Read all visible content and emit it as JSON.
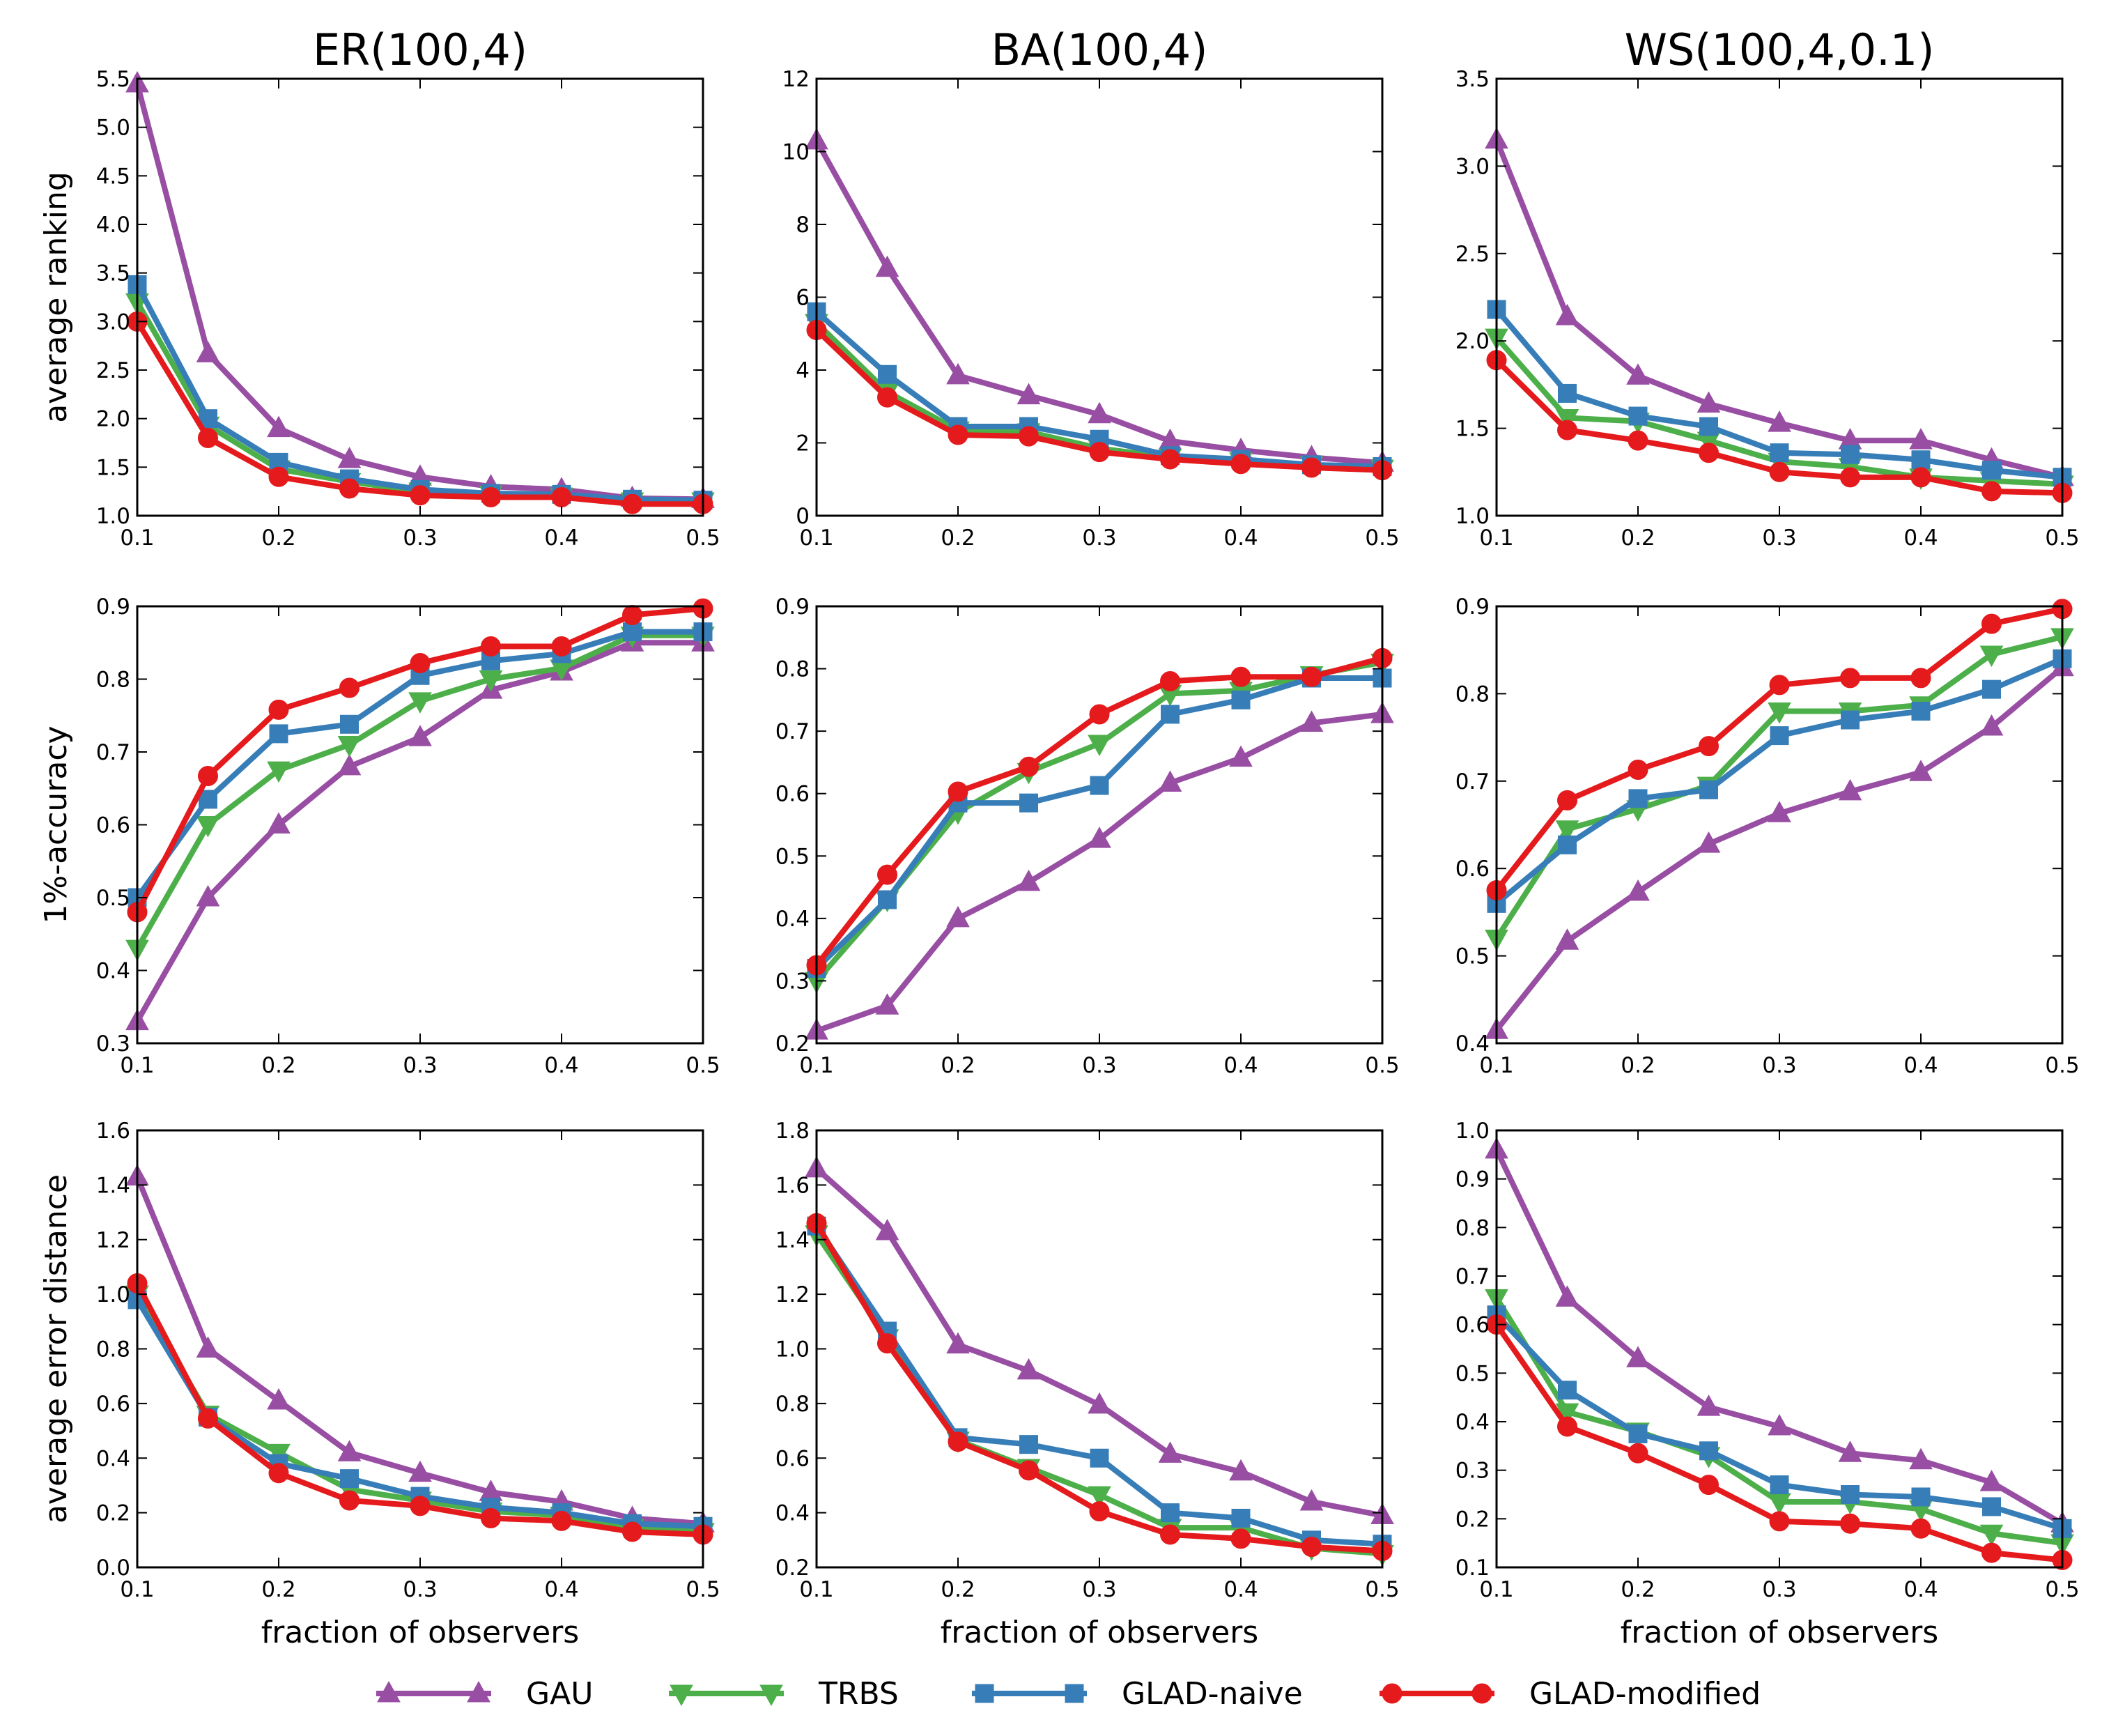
{
  "colors": {
    "GAU": "#984ea3",
    "TRBS": "#4daf4a",
    "GLAD-naive": "#377eb8",
    "GLAD-modified": "#e41a1c"
  },
  "legend": [
    {
      "name": "GAU",
      "marker": "triangle-up",
      "color": "#984ea3"
    },
    {
      "name": "TRBS",
      "marker": "triangle-down",
      "color": "#4daf4a"
    },
    {
      "name": "GLAD-naive",
      "marker": "square",
      "color": "#377eb8"
    },
    {
      "name": "GLAD-modified",
      "marker": "circle",
      "color": "#e41a1c"
    }
  ],
  "chart_data": [
    {
      "type": "line",
      "row": 0,
      "col": 0,
      "title": "ER(100,4)",
      "xlabel": "",
      "ylabel": "average ranking",
      "x": [
        0.1,
        0.15,
        0.2,
        0.25,
        0.3,
        0.35,
        0.4,
        0.45,
        0.5
      ],
      "xlim": [
        0.1,
        0.5
      ],
      "xticks": [
        0.1,
        0.2,
        0.3,
        0.4,
        0.5
      ],
      "ylim": [
        1.0,
        5.5
      ],
      "yticks": [
        1.0,
        1.5,
        2.0,
        2.5,
        3.0,
        3.5,
        4.0,
        4.5,
        5.0,
        5.5
      ],
      "ydecimals": 1,
      "series": [
        {
          "name": "GAU",
          "values": [
            5.45,
            2.67,
            1.9,
            1.58,
            1.4,
            1.3,
            1.27,
            1.18,
            1.17
          ]
        },
        {
          "name": "TRBS",
          "values": [
            3.2,
            1.93,
            1.48,
            1.35,
            1.25,
            1.22,
            1.2,
            1.15,
            1.15
          ]
        },
        {
          "name": "GLAD-naive",
          "values": [
            3.38,
            2.0,
            1.55,
            1.38,
            1.27,
            1.23,
            1.22,
            1.17,
            1.16
          ]
        },
        {
          "name": "GLAD-modified",
          "values": [
            3.0,
            1.8,
            1.4,
            1.28,
            1.21,
            1.19,
            1.19,
            1.12,
            1.12
          ]
        }
      ]
    },
    {
      "type": "line",
      "row": 0,
      "col": 1,
      "title": "BA(100,4)",
      "xlabel": "",
      "ylabel": "",
      "x": [
        0.1,
        0.15,
        0.2,
        0.25,
        0.3,
        0.35,
        0.4,
        0.45,
        0.5
      ],
      "xlim": [
        0.1,
        0.5
      ],
      "xticks": [
        0.1,
        0.2,
        0.3,
        0.4,
        0.5
      ],
      "ylim": [
        0,
        12
      ],
      "yticks": [
        0,
        2,
        4,
        6,
        8,
        10,
        12
      ],
      "ydecimals": 0,
      "series": [
        {
          "name": "GAU",
          "values": [
            10.3,
            6.8,
            3.85,
            3.3,
            2.78,
            2.05,
            1.8,
            1.6,
            1.45
          ]
        },
        {
          "name": "TRBS",
          "values": [
            5.3,
            3.4,
            2.35,
            2.3,
            1.85,
            1.6,
            1.5,
            1.4,
            1.3
          ]
        },
        {
          "name": "GLAD-naive",
          "values": [
            5.6,
            3.88,
            2.45,
            2.45,
            2.1,
            1.65,
            1.55,
            1.4,
            1.35
          ]
        },
        {
          "name": "GLAD-modified",
          "values": [
            5.1,
            3.25,
            2.22,
            2.18,
            1.75,
            1.55,
            1.42,
            1.32,
            1.25
          ]
        }
      ]
    },
    {
      "type": "line",
      "row": 0,
      "col": 2,
      "title": "WS(100,4,0.1)",
      "xlabel": "",
      "ylabel": "",
      "x": [
        0.1,
        0.15,
        0.2,
        0.25,
        0.3,
        0.35,
        0.4,
        0.45,
        0.5
      ],
      "xlim": [
        0.1,
        0.5
      ],
      "xticks": [
        0.1,
        0.2,
        0.3,
        0.4,
        0.5
      ],
      "ylim": [
        1.0,
        3.5
      ],
      "yticks": [
        1.0,
        1.5,
        2.0,
        2.5,
        3.0,
        3.5
      ],
      "ydecimals": 1,
      "series": [
        {
          "name": "GAU",
          "values": [
            3.15,
            2.14,
            1.8,
            1.64,
            1.53,
            1.43,
            1.43,
            1.32,
            1.22
          ]
        },
        {
          "name": "TRBS",
          "values": [
            2.02,
            1.56,
            1.54,
            1.43,
            1.31,
            1.28,
            1.22,
            1.2,
            1.18
          ]
        },
        {
          "name": "GLAD-naive",
          "values": [
            2.18,
            1.7,
            1.57,
            1.51,
            1.36,
            1.35,
            1.32,
            1.26,
            1.22
          ]
        },
        {
          "name": "GLAD-modified",
          "values": [
            1.89,
            1.49,
            1.43,
            1.36,
            1.25,
            1.22,
            1.22,
            1.14,
            1.13
          ]
        }
      ]
    },
    {
      "type": "line",
      "row": 1,
      "col": 0,
      "title": "",
      "xlabel": "",
      "ylabel": "1%-accuracy",
      "x": [
        0.1,
        0.15,
        0.2,
        0.25,
        0.3,
        0.35,
        0.4,
        0.45,
        0.5
      ],
      "xlim": [
        0.1,
        0.5
      ],
      "xticks": [
        0.1,
        0.2,
        0.3,
        0.4,
        0.5
      ],
      "ylim": [
        0.3,
        0.9
      ],
      "yticks": [
        0.3,
        0.4,
        0.5,
        0.6,
        0.7,
        0.8,
        0.9
      ],
      "ydecimals": 1,
      "series": [
        {
          "name": "GAU",
          "values": [
            0.33,
            0.5,
            0.6,
            0.68,
            0.72,
            0.785,
            0.81,
            0.85,
            0.85
          ]
        },
        {
          "name": "TRBS",
          "values": [
            0.43,
            0.6,
            0.675,
            0.71,
            0.77,
            0.8,
            0.815,
            0.86,
            0.86
          ]
        },
        {
          "name": "GLAD-naive",
          "values": [
            0.5,
            0.635,
            0.725,
            0.738,
            0.805,
            0.825,
            0.835,
            0.865,
            0.865
          ]
        },
        {
          "name": "GLAD-modified",
          "values": [
            0.48,
            0.667,
            0.758,
            0.788,
            0.822,
            0.845,
            0.845,
            0.888,
            0.897
          ]
        }
      ]
    },
    {
      "type": "line",
      "row": 1,
      "col": 1,
      "title": "",
      "xlabel": "",
      "ylabel": "",
      "x": [
        0.1,
        0.15,
        0.2,
        0.25,
        0.3,
        0.35,
        0.4,
        0.45,
        0.5
      ],
      "xlim": [
        0.1,
        0.5
      ],
      "xticks": [
        0.1,
        0.2,
        0.3,
        0.4,
        0.5
      ],
      "ylim": [
        0.2,
        0.9
      ],
      "yticks": [
        0.2,
        0.3,
        0.4,
        0.5,
        0.6,
        0.7,
        0.8,
        0.9
      ],
      "ydecimals": 1,
      "series": [
        {
          "name": "GAU",
          "values": [
            0.22,
            0.26,
            0.4,
            0.458,
            0.527,
            0.617,
            0.657,
            0.713,
            0.727
          ]
        },
        {
          "name": "TRBS",
          "values": [
            0.3,
            0.43,
            0.57,
            0.635,
            0.68,
            0.76,
            0.765,
            0.79,
            0.81
          ]
        },
        {
          "name": "GLAD-naive",
          "values": [
            0.32,
            0.43,
            0.585,
            0.585,
            0.613,
            0.727,
            0.75,
            0.785,
            0.785
          ]
        },
        {
          "name": "GLAD-modified",
          "values": [
            0.325,
            0.47,
            0.603,
            0.643,
            0.727,
            0.78,
            0.787,
            0.787,
            0.817
          ]
        }
      ]
    },
    {
      "type": "line",
      "row": 1,
      "col": 2,
      "title": "",
      "xlabel": "",
      "ylabel": "",
      "x": [
        0.1,
        0.15,
        0.2,
        0.25,
        0.3,
        0.35,
        0.4,
        0.45,
        0.5
      ],
      "xlim": [
        0.1,
        0.5
      ],
      "xticks": [
        0.1,
        0.2,
        0.3,
        0.4,
        0.5
      ],
      "ylim": [
        0.4,
        0.9
      ],
      "yticks": [
        0.4,
        0.5,
        0.6,
        0.7,
        0.8,
        0.9
      ],
      "ydecimals": 1,
      "series": [
        {
          "name": "GAU",
          "values": [
            0.415,
            0.517,
            0.573,
            0.628,
            0.663,
            0.688,
            0.71,
            0.762,
            0.83
          ]
        },
        {
          "name": "TRBS",
          "values": [
            0.52,
            0.645,
            0.668,
            0.695,
            0.78,
            0.78,
            0.787,
            0.845,
            0.865
          ]
        },
        {
          "name": "GLAD-naive",
          "values": [
            0.56,
            0.627,
            0.68,
            0.69,
            0.752,
            0.77,
            0.78,
            0.805,
            0.84
          ]
        },
        {
          "name": "GLAD-modified",
          "values": [
            0.575,
            0.678,
            0.713,
            0.74,
            0.81,
            0.818,
            0.818,
            0.88,
            0.897
          ]
        }
      ]
    },
    {
      "type": "line",
      "row": 2,
      "col": 0,
      "title": "",
      "xlabel": "fraction of observers",
      "ylabel": "average error distance",
      "x": [
        0.1,
        0.15,
        0.2,
        0.25,
        0.3,
        0.35,
        0.4,
        0.45,
        0.5
      ],
      "xlim": [
        0.1,
        0.5
      ],
      "xticks": [
        0.1,
        0.2,
        0.3,
        0.4,
        0.5
      ],
      "ylim": [
        0.0,
        1.6
      ],
      "yticks": [
        0.0,
        0.2,
        0.4,
        0.6,
        0.8,
        1.0,
        1.2,
        1.4,
        1.6
      ],
      "ydecimals": 1,
      "series": [
        {
          "name": "GAU",
          "values": [
            1.43,
            0.8,
            0.61,
            0.42,
            0.345,
            0.275,
            0.24,
            0.18,
            0.16
          ]
        },
        {
          "name": "TRBS",
          "values": [
            1.0,
            0.56,
            0.42,
            0.285,
            0.245,
            0.205,
            0.19,
            0.145,
            0.13
          ]
        },
        {
          "name": "GLAD-naive",
          "values": [
            0.98,
            0.55,
            0.38,
            0.325,
            0.26,
            0.22,
            0.2,
            0.16,
            0.15
          ]
        },
        {
          "name": "GLAD-modified",
          "values": [
            1.04,
            0.545,
            0.345,
            0.245,
            0.225,
            0.18,
            0.17,
            0.13,
            0.12
          ]
        }
      ]
    },
    {
      "type": "line",
      "row": 2,
      "col": 1,
      "title": "",
      "xlabel": "fraction of observers",
      "ylabel": "",
      "x": [
        0.1,
        0.15,
        0.2,
        0.25,
        0.3,
        0.35,
        0.4,
        0.45,
        0.5
      ],
      "xlim": [
        0.1,
        0.5
      ],
      "xticks": [
        0.1,
        0.2,
        0.3,
        0.4,
        0.5
      ],
      "ylim": [
        0.2,
        1.8
      ],
      "yticks": [
        0.2,
        0.4,
        0.6,
        0.8,
        1.0,
        1.2,
        1.4,
        1.6,
        1.8
      ],
      "ydecimals": 1,
      "series": [
        {
          "name": "GAU",
          "values": [
            1.66,
            1.43,
            1.015,
            0.92,
            0.795,
            0.615,
            0.55,
            0.44,
            0.39
          ]
        },
        {
          "name": "TRBS",
          "values": [
            1.42,
            1.04,
            0.665,
            0.565,
            0.465,
            0.345,
            0.345,
            0.27,
            0.25
          ]
        },
        {
          "name": "GLAD-naive",
          "values": [
            1.45,
            1.065,
            0.675,
            0.65,
            0.6,
            0.4,
            0.38,
            0.3,
            0.285
          ]
        },
        {
          "name": "GLAD-modified",
          "values": [
            1.46,
            1.02,
            0.66,
            0.555,
            0.405,
            0.32,
            0.305,
            0.275,
            0.26
          ]
        }
      ]
    },
    {
      "type": "line",
      "row": 2,
      "col": 2,
      "title": "",
      "xlabel": "fraction of observers",
      "ylabel": "",
      "x": [
        0.1,
        0.15,
        0.2,
        0.25,
        0.3,
        0.35,
        0.4,
        0.45,
        0.5
      ],
      "xlim": [
        0.1,
        0.5
      ],
      "xticks": [
        0.1,
        0.2,
        0.3,
        0.4,
        0.5
      ],
      "ylim": [
        0.1,
        1.0
      ],
      "yticks": [
        0.1,
        0.2,
        0.3,
        0.4,
        0.5,
        0.6,
        0.7,
        0.8,
        0.9,
        1.0
      ],
      "ydecimals": 1,
      "series": [
        {
          "name": "GAU",
          "values": [
            0.96,
            0.655,
            0.53,
            0.43,
            0.39,
            0.335,
            0.32,
            0.275,
            0.19
          ]
        },
        {
          "name": "TRBS",
          "values": [
            0.655,
            0.42,
            0.38,
            0.33,
            0.235,
            0.235,
            0.22,
            0.17,
            0.15
          ]
        },
        {
          "name": "GLAD-naive",
          "values": [
            0.62,
            0.465,
            0.375,
            0.34,
            0.27,
            0.25,
            0.245,
            0.225,
            0.18
          ]
        },
        {
          "name": "GLAD-modified",
          "values": [
            0.6,
            0.39,
            0.335,
            0.27,
            0.195,
            0.19,
            0.18,
            0.13,
            0.115
          ]
        }
      ]
    }
  ]
}
